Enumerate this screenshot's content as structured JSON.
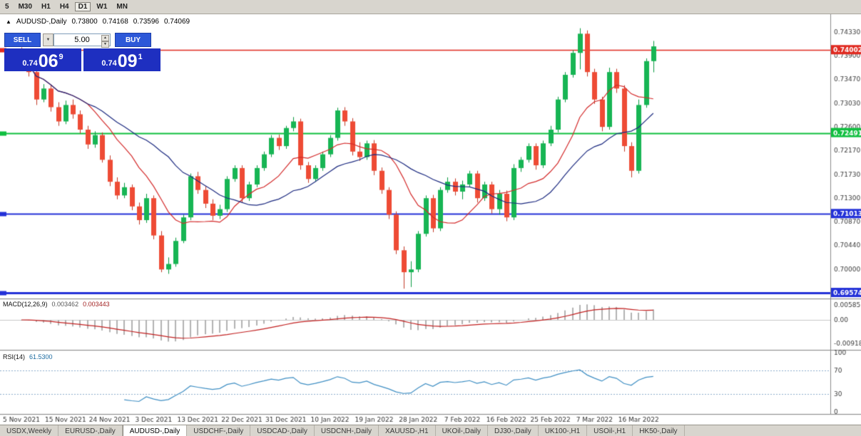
{
  "toolbar": {
    "timeframes": [
      "5",
      "M30",
      "H1",
      "H4",
      "D1",
      "W1",
      "MN"
    ],
    "active": "D1"
  },
  "trade_panel": {
    "sell_label": "SELL",
    "buy_label": "BUY",
    "volume": "5.00",
    "bid": {
      "prefix": "0.74",
      "pips": "06",
      "pipette": "9"
    },
    "ask": {
      "prefix": "0.74",
      "pips": "09",
      "pipette": "1"
    }
  },
  "chart_data": {
    "type": "candlestick",
    "symbol": "AUDUSD-,Daily",
    "ohlc": {
      "marker": "▲",
      "symbol": "AUDUSD-,Daily",
      "open": "0.73800",
      "high": "0.74168",
      "low": "0.73596",
      "close": "0.74069"
    },
    "price_axis_top": 0.74655,
    "price_scale": 7696,
    "y_ticks": [
      "0.74330",
      "0.73900",
      "0.73470",
      "0.73030",
      "0.72600",
      "0.72170",
      "0.71730",
      "0.71300",
      "0.70870",
      "0.70440",
      "0.70000"
    ],
    "levels": [
      {
        "value": 0.74002,
        "label": "0.74002",
        "color": "#e02a20",
        "width": 1.5
      },
      {
        "value": 0.72491,
        "label": "0.72491",
        "color": "#0fbf3f",
        "width": 2
      },
      {
        "value": 0.71013,
        "label": "0.71013",
        "color": "#2331d8",
        "width": 2
      },
      {
        "value": 0.69574,
        "label": "0.69574",
        "color": "#2331d8",
        "width": 3
      }
    ],
    "ma_fast_period": 10,
    "ma_slow_period": 21,
    "ma_fast_color": "#d42a2a",
    "ma_slow_color": "#1c2a80",
    "up_color": "#17b554",
    "down_color": "#ee4b35",
    "x_labels": [
      "5 Nov 2021",
      "15 Nov 2021",
      "24 Nov 2021",
      "3 Dec 2021",
      "13 Dec 2021",
      "22 Dec 2021",
      "31 Dec 2021",
      "10 Jan 2022",
      "19 Jan 2022",
      "28 Jan 2022",
      "7 Feb 2022",
      "16 Feb 2022",
      "25 Feb 2022",
      "7 Mar 2022",
      "16 Mar 2022"
    ],
    "label_every": 6,
    "candles": [
      [
        0.7398,
        0.7405,
        0.7382,
        0.7388
      ],
      [
        0.7388,
        0.7392,
        0.7352,
        0.736
      ],
      [
        0.736,
        0.7368,
        0.73,
        0.731
      ],
      [
        0.731,
        0.7338,
        0.7305,
        0.733
      ],
      [
        0.733,
        0.7336,
        0.7288,
        0.7296
      ],
      [
        0.7296,
        0.7305,
        0.7262,
        0.727
      ],
      [
        0.727,
        0.7308,
        0.7265,
        0.73
      ],
      [
        0.73,
        0.731,
        0.7275,
        0.7283
      ],
      [
        0.7283,
        0.729,
        0.7248,
        0.7255
      ],
      [
        0.7255,
        0.7262,
        0.722,
        0.7228
      ],
      [
        0.7228,
        0.7252,
        0.7222,
        0.7245
      ],
      [
        0.7245,
        0.725,
        0.7195,
        0.72
      ],
      [
        0.72,
        0.7208,
        0.7152,
        0.716
      ],
      [
        0.716,
        0.7168,
        0.7128,
        0.7135
      ],
      [
        0.7135,
        0.7158,
        0.713,
        0.715
      ],
      [
        0.715,
        0.7155,
        0.7108,
        0.7115
      ],
      [
        0.7115,
        0.7122,
        0.7082,
        0.709
      ],
      [
        0.709,
        0.7138,
        0.7085,
        0.713
      ],
      [
        0.713,
        0.7135,
        0.7055,
        0.7062
      ],
      [
        0.7062,
        0.707,
        0.6995,
        0.7
      ],
      [
        0.7,
        0.7022,
        0.6992,
        0.701
      ],
      [
        0.701,
        0.7058,
        0.7005,
        0.7052
      ],
      [
        0.7052,
        0.71,
        0.7048,
        0.7095
      ],
      [
        0.7095,
        0.7175,
        0.709,
        0.717
      ],
      [
        0.717,
        0.7178,
        0.7138,
        0.7145
      ],
      [
        0.7145,
        0.7152,
        0.7112,
        0.712
      ],
      [
        0.712,
        0.7128,
        0.709,
        0.7098
      ],
      [
        0.7098,
        0.7118,
        0.7092,
        0.711
      ],
      [
        0.711,
        0.717,
        0.7105,
        0.7165
      ],
      [
        0.7165,
        0.719,
        0.716,
        0.7185
      ],
      [
        0.7185,
        0.719,
        0.7122,
        0.713
      ],
      [
        0.713,
        0.716,
        0.7125,
        0.7155
      ],
      [
        0.7155,
        0.719,
        0.715,
        0.7185
      ],
      [
        0.7185,
        0.7215,
        0.718,
        0.721
      ],
      [
        0.721,
        0.7245,
        0.7205,
        0.724
      ],
      [
        0.724,
        0.7246,
        0.7218,
        0.7225
      ],
      [
        0.7225,
        0.7262,
        0.722,
        0.7258
      ],
      [
        0.7258,
        0.7278,
        0.7252,
        0.727
      ],
      [
        0.727,
        0.7275,
        0.7182,
        0.719
      ],
      [
        0.719,
        0.7196,
        0.7158,
        0.7165
      ],
      [
        0.7165,
        0.719,
        0.716,
        0.7185
      ],
      [
        0.7185,
        0.7215,
        0.718,
        0.721
      ],
      [
        0.721,
        0.7245,
        0.7205,
        0.724
      ],
      [
        0.724,
        0.7295,
        0.7235,
        0.729
      ],
      [
        0.729,
        0.7296,
        0.7262,
        0.727
      ],
      [
        0.727,
        0.7276,
        0.7208,
        0.7215
      ],
      [
        0.7215,
        0.7232,
        0.7198,
        0.7205
      ],
      [
        0.7205,
        0.7235,
        0.72,
        0.723
      ],
      [
        0.723,
        0.7236,
        0.7172,
        0.718
      ],
      [
        0.718,
        0.7186,
        0.7138,
        0.7145
      ],
      [
        0.7145,
        0.715,
        0.7092,
        0.71
      ],
      [
        0.71,
        0.7106,
        0.7028,
        0.7035
      ],
      [
        0.7035,
        0.7042,
        0.6965,
        0.6995
      ],
      [
        0.6995,
        0.7015,
        0.6968,
        0.7
      ],
      [
        0.7,
        0.707,
        0.6995,
        0.7065
      ],
      [
        0.7065,
        0.7135,
        0.706,
        0.713
      ],
      [
        0.713,
        0.7136,
        0.7068,
        0.7075
      ],
      [
        0.7075,
        0.715,
        0.707,
        0.7145
      ],
      [
        0.7145,
        0.7168,
        0.714,
        0.716
      ],
      [
        0.716,
        0.7166,
        0.7135,
        0.7142
      ],
      [
        0.7142,
        0.7162,
        0.7128,
        0.7155
      ],
      [
        0.7155,
        0.718,
        0.715,
        0.7175
      ],
      [
        0.7175,
        0.718,
        0.7122,
        0.713
      ],
      [
        0.713,
        0.716,
        0.7125,
        0.7155
      ],
      [
        0.7155,
        0.716,
        0.7102,
        0.711
      ],
      [
        0.711,
        0.7145,
        0.71,
        0.7138
      ],
      [
        0.7138,
        0.7144,
        0.7088,
        0.7095
      ],
      [
        0.7095,
        0.7192,
        0.709,
        0.7185
      ],
      [
        0.7185,
        0.7205,
        0.7178,
        0.72
      ],
      [
        0.72,
        0.723,
        0.7195,
        0.7225
      ],
      [
        0.7225,
        0.723,
        0.7182,
        0.719
      ],
      [
        0.719,
        0.7235,
        0.7185,
        0.723
      ],
      [
        0.723,
        0.7262,
        0.7225,
        0.7255
      ],
      [
        0.7255,
        0.7315,
        0.725,
        0.731
      ],
      [
        0.731,
        0.736,
        0.7305,
        0.7355
      ],
      [
        0.7355,
        0.74,
        0.735,
        0.7395
      ],
      [
        0.7395,
        0.744,
        0.7365,
        0.743
      ],
      [
        0.743,
        0.7436,
        0.7352,
        0.736
      ],
      [
        0.736,
        0.7366,
        0.7302,
        0.731
      ],
      [
        0.731,
        0.7315,
        0.7252,
        0.726
      ],
      [
        0.726,
        0.7368,
        0.7255,
        0.736
      ],
      [
        0.736,
        0.7366,
        0.7322,
        0.733
      ],
      [
        0.733,
        0.7336,
        0.7215,
        0.7225
      ],
      [
        0.7225,
        0.7232,
        0.7168,
        0.718
      ],
      [
        0.718,
        0.731,
        0.7175,
        0.73
      ],
      [
        0.73,
        0.7385,
        0.7295,
        0.738
      ],
      [
        0.738,
        0.74168,
        0.73596,
        0.74069
      ]
    ],
    "macd": {
      "label": "MACD(12,26,9)",
      "value_main": "0.003462",
      "value_signal": "0.003443",
      "params": [
        12,
        26,
        9
      ],
      "y_ticks": [
        "0.00585",
        "0.00",
        "-0.00918"
      ],
      "histogram_color": "#b2b2b2",
      "signal_color": "#c22020"
    },
    "rsi": {
      "label": "RSI(14)",
      "value": "61.5300",
      "period": 14,
      "levels": [
        70,
        30
      ],
      "y_ticks": [
        "100",
        "70",
        "30",
        "0"
      ],
      "line_color": "#3f8fc4"
    }
  },
  "tabs": {
    "items": [
      {
        "label": "USDX,Weekly"
      },
      {
        "label": "EURUSD-,Daily"
      },
      {
        "label": "AUDUSD-,Daily"
      },
      {
        "label": "USDCHF-,Daily"
      },
      {
        "label": "USDCAD-,Daily"
      },
      {
        "label": "USDCNH-,Daily"
      },
      {
        "label": "XAUUSD-,H1"
      },
      {
        "label": "UKOil-,Daily"
      },
      {
        "label": "DJ30-,Daily"
      },
      {
        "label": "UK100-,H1"
      },
      {
        "label": "USOil-,H1"
      },
      {
        "label": "HK50-,Daily"
      }
    ],
    "active": "AUDUSD-,Daily"
  }
}
